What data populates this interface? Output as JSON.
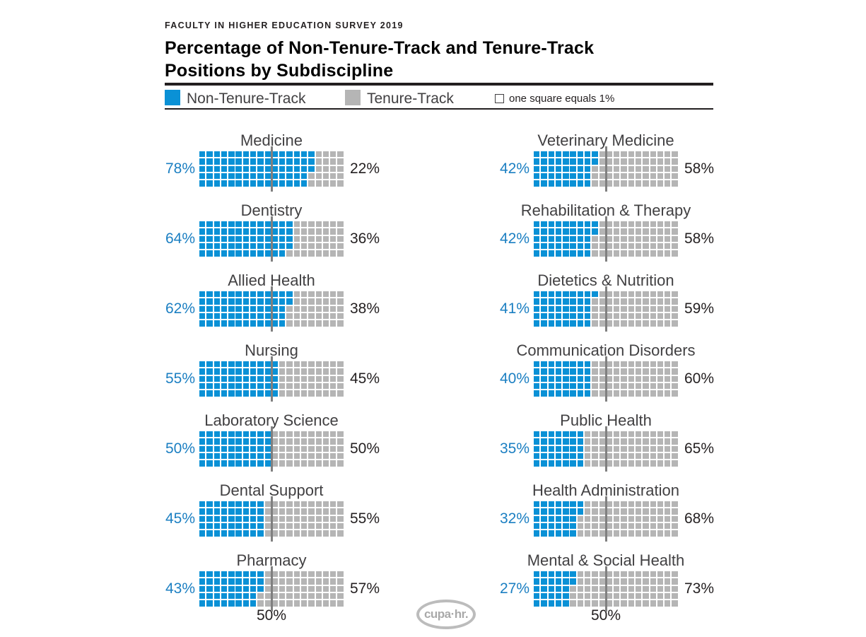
{
  "header": {
    "eyebrow": "FACULTY IN HIGHER EDUCATION SURVEY 2019",
    "title_line1": "Percentage of Non-Tenure-Track and Tenure-Track",
    "title_line2": "Positions by Subdiscipline"
  },
  "legend": {
    "non_tenure_track_label": "Non-Tenure-Track",
    "tenure_track_label": "Tenure-Track",
    "note": "one square equals 1%"
  },
  "footer": {
    "logo_text": "cupa·hr."
  },
  "colors": {
    "non_tenure_track": "#0a91d6",
    "tenure_track": "#b5b5b5",
    "percent_left_label": "#1b7fc2",
    "midline": "#808080",
    "text_dark": "#231f20",
    "chart_title": "#414042"
  },
  "chart_data": {
    "type": "bar",
    "variant": "waffle chart, stacked to 100%, filled column-by-column top-to-bottom",
    "unit": "%",
    "title": "Percentage of Non-Tenure-Track and Tenure-Track Positions by Subdiscipline",
    "subtitle": "FACULTY IN HIGHER EDUCATION SURVEY 2019",
    "legend_entries": [
      "Non-Tenure-Track",
      "Tenure-Track"
    ],
    "note": "one square equals 1%",
    "axis_marker": {
      "value": 50,
      "label": "50%"
    },
    "waffle_grid": {
      "rows": 5,
      "cols": 20,
      "square_percent": 1
    },
    "left_column": [
      {
        "category": "Medicine",
        "non_tenure_track": 78,
        "tenure_track": 22
      },
      {
        "category": "Dentistry",
        "non_tenure_track": 64,
        "tenure_track": 36
      },
      {
        "category": "Allied Health",
        "non_tenure_track": 62,
        "tenure_track": 38
      },
      {
        "category": "Nursing",
        "non_tenure_track": 55,
        "tenure_track": 45
      },
      {
        "category": "Laboratory Science",
        "non_tenure_track": 50,
        "tenure_track": 50
      },
      {
        "category": "Dental Support",
        "non_tenure_track": 45,
        "tenure_track": 55
      },
      {
        "category": "Pharmacy",
        "non_tenure_track": 43,
        "tenure_track": 57
      }
    ],
    "right_column": [
      {
        "category": "Veterinary Medicine",
        "non_tenure_track": 42,
        "tenure_track": 58
      },
      {
        "category": "Rehabilitation & Therapy",
        "non_tenure_track": 42,
        "tenure_track": 58
      },
      {
        "category": "Dietetics & Nutrition",
        "non_tenure_track": 41,
        "tenure_track": 59
      },
      {
        "category": "Communication Disorders",
        "non_tenure_track": 40,
        "tenure_track": 60
      },
      {
        "category": "Public Health",
        "non_tenure_track": 35,
        "tenure_track": 65
      },
      {
        "category": "Health Administration",
        "non_tenure_track": 32,
        "tenure_track": 68
      },
      {
        "category": "Mental & Social Health",
        "non_tenure_track": 27,
        "tenure_track": 73
      }
    ]
  }
}
